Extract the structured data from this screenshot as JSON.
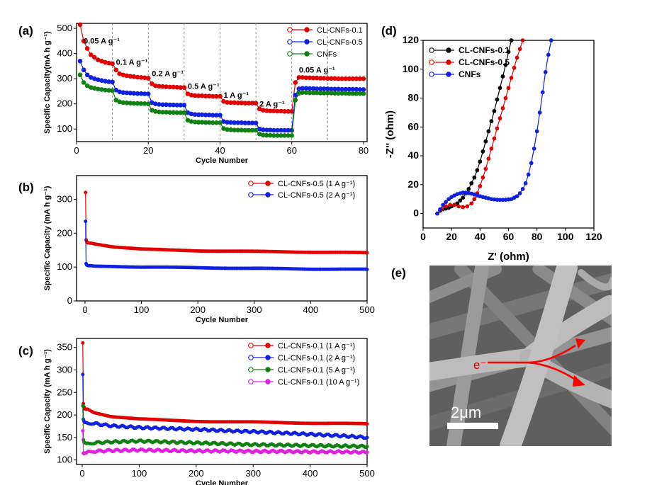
{
  "figure": {
    "panel_labels": [
      "(a)",
      "(b)",
      "(c)",
      "(d)",
      "(e)"
    ]
  },
  "chart_data": [
    {
      "id": "a",
      "type": "scatter",
      "xlabel": "Cycle Number",
      "ylabel": "Specific Capacity(mA h g⁻¹)",
      "xlim": [
        0,
        81
      ],
      "ylim": [
        50,
        520
      ],
      "xticks": [
        0,
        20,
        40,
        60,
        80
      ],
      "yticks": [
        100,
        200,
        300,
        400,
        500
      ],
      "dashed_lines_x": [
        10,
        20,
        30,
        40,
        50,
        60,
        70
      ],
      "legend_position": "top-right",
      "annotations": [
        {
          "text": "0.05 A g⁻¹",
          "x": 2,
          "y": 440
        },
        {
          "text": "0.1 A g⁻¹",
          "x": 11,
          "y": 355
        },
        {
          "text": "0.2 A g⁻¹",
          "x": 21,
          "y": 310
        },
        {
          "text": "0.5 A g⁻¹",
          "x": 31,
          "y": 260
        },
        {
          "text": "1 A g⁻¹",
          "x": 41,
          "y": 225
        },
        {
          "text": "2 A g⁻¹",
          "x": 51,
          "y": 190
        },
        {
          "text": "0.05 A g⁻¹",
          "x": 62,
          "y": 325
        }
      ],
      "series": [
        {
          "name": "CL-CNFs-0.1",
          "color": "#e00000",
          "values": [
            515,
            450,
            420,
            395,
            385,
            375,
            370,
            365,
            362,
            360,
            335,
            320,
            315,
            312,
            310,
            308,
            306,
            305,
            304,
            302,
            280,
            272,
            270,
            269,
            268,
            267,
            267,
            266,
            265,
            265,
            240,
            235,
            233,
            232,
            232,
            231,
            231,
            230,
            230,
            230,
            210,
            206,
            205,
            205,
            204,
            204,
            203,
            203,
            203,
            203,
            180,
            175,
            173,
            172,
            172,
            171,
            171,
            170,
            170,
            170,
            285,
            305,
            305,
            304,
            304,
            303,
            303,
            302,
            302,
            301,
            301,
            301,
            300,
            300,
            300,
            300,
            300,
            300,
            300,
            300
          ]
        },
        {
          "name": "CL-CNFs-0.5",
          "color": "#1020e0",
          "values": [
            370,
            335,
            315,
            305,
            300,
            296,
            293,
            290,
            288,
            287,
            255,
            248,
            245,
            244,
            243,
            242,
            241,
            241,
            240,
            240,
            205,
            200,
            198,
            197,
            197,
            196,
            196,
            195,
            195,
            195,
            165,
            160,
            158,
            157,
            157,
            156,
            156,
            155,
            155,
            155,
            130,
            127,
            126,
            125,
            125,
            125,
            124,
            124,
            124,
            124,
            100,
            97,
            96,
            96,
            95,
            95,
            95,
            95,
            95,
            95,
            235,
            260,
            262,
            262,
            261,
            261,
            260,
            260,
            260,
            260,
            259,
            259,
            259,
            258,
            258,
            258,
            258,
            258,
            257,
            257
          ]
        },
        {
          "name": "CNFs",
          "color": "#108010",
          "values": [
            315,
            285,
            272,
            265,
            262,
            259,
            257,
            255,
            254,
            253,
            215,
            208,
            205,
            204,
            203,
            202,
            202,
            201,
            201,
            200,
            175,
            170,
            168,
            167,
            167,
            166,
            166,
            165,
            165,
            165,
            135,
            130,
            128,
            127,
            127,
            126,
            126,
            125,
            125,
            125,
            102,
            98,
            97,
            96,
            96,
            96,
            95,
            95,
            95,
            95,
            80,
            76,
            75,
            75,
            74,
            74,
            74,
            74,
            74,
            74,
            215,
            242,
            245,
            245,
            244,
            244,
            244,
            243,
            243,
            243,
            243,
            242,
            242,
            242,
            242,
            241,
            241,
            241,
            241,
            241
          ]
        }
      ]
    },
    {
      "id": "b",
      "type": "scatter",
      "xlabel": "Cycle Number",
      "ylabel": "Specific Capacity (mA h g⁻¹)",
      "xlim": [
        -15,
        500
      ],
      "ylim": [
        0,
        370
      ],
      "xticks": [
        0,
        100,
        200,
        300,
        400,
        500
      ],
      "yticks": [
        0,
        100,
        200,
        300
      ],
      "legend_position": "top-right",
      "series": [
        {
          "name": "CL-CNFs-0.5 (1 A g⁻¹)",
          "color": "#e00000",
          "x": [
            1,
            2,
            3,
            5,
            10,
            20,
            50,
            100,
            150,
            200,
            250,
            300,
            350,
            400,
            450,
            500
          ],
          "values": [
            320,
            180,
            175,
            172,
            170,
            168,
            160,
            153,
            150,
            148,
            147,
            146,
            145,
            144,
            143,
            142
          ]
        },
        {
          "name": "CL-CNFs-0.5 (2 A g⁻¹)",
          "color": "#1020e0",
          "x": [
            1,
            2,
            3,
            5,
            10,
            20,
            50,
            100,
            150,
            200,
            250,
            300,
            350,
            400,
            450,
            500
          ],
          "values": [
            235,
            110,
            106,
            105,
            104,
            103,
            102,
            100,
            99,
            98,
            97,
            96,
            95,
            94,
            94,
            93
          ]
        }
      ]
    },
    {
      "id": "c",
      "type": "scatter",
      "xlabel": "Cycle Number",
      "ylabel": "Specific Capacity (mA h g⁻¹)",
      "xlim": [
        -10,
        500
      ],
      "ylim": [
        90,
        370
      ],
      "xticks": [
        0,
        100,
        200,
        300,
        400,
        500
      ],
      "yticks": [
        100,
        150,
        200,
        250,
        300,
        350
      ],
      "legend_position": "top-right",
      "series": [
        {
          "name": "CL-CNFs-0.1 (1 A g⁻¹)",
          "color": "#e00000",
          "x": [
            1,
            2,
            3,
            5,
            10,
            20,
            50,
            100,
            150,
            200,
            250,
            300,
            350,
            400,
            450,
            500
          ],
          "values": [
            360,
            225,
            218,
            214,
            212,
            206,
            197,
            191,
            188,
            186,
            185,
            184,
            183,
            182,
            181,
            180
          ]
        },
        {
          "name": "CL-CNFs-0.1 (2 A g⁻¹)",
          "color": "#1020e0",
          "x": [
            1,
            2,
            3,
            5,
            10,
            20,
            50,
            100,
            150,
            200,
            250,
            300,
            350,
            400,
            450,
            500
          ],
          "values": [
            290,
            190,
            186,
            184,
            183,
            181,
            176,
            172,
            170,
            168,
            165,
            163,
            160,
            157,
            154,
            150
          ]
        },
        {
          "name": "CL-CNFs-0.1 (5 A g⁻¹)",
          "color": "#108010",
          "x": [
            1,
            2,
            3,
            5,
            10,
            20,
            50,
            100,
            150,
            200,
            250,
            300,
            350,
            400,
            450,
            500
          ],
          "values": [
            220,
            145,
            140,
            138,
            137,
            138,
            140,
            142,
            140,
            138,
            136,
            134,
            133,
            132,
            131,
            130
          ]
        },
        {
          "name": "CL-CNFs-0.1 (10 A g⁻¹)",
          "color": "#e020e0",
          "x": [
            1,
            2,
            3,
            5,
            10,
            20,
            50,
            100,
            150,
            200,
            250,
            300,
            350,
            400,
            450,
            500
          ],
          "values": [
            165,
            115,
            114,
            115,
            117,
            119,
            121,
            122,
            121,
            120,
            120,
            119,
            119,
            118,
            118,
            117
          ]
        }
      ]
    },
    {
      "id": "d",
      "type": "scatter",
      "xlabel": "Z' (ohm)",
      "ylabel": "-Z'' (ohm)",
      "xlim": [
        0,
        120
      ],
      "ylim": [
        -10,
        120
      ],
      "xticks": [
        0,
        20,
        40,
        60,
        80,
        100,
        120
      ],
      "yticks": [
        0,
        20,
        40,
        60,
        80,
        100,
        120
      ],
      "legend_position": "top-left",
      "series": [
        {
          "name": "CL-CNFs-0.1",
          "color": "#000000",
          "x": [
            10,
            12,
            14,
            16,
            18,
            20,
            22,
            24,
            26,
            28,
            30,
            32,
            34,
            36,
            38,
            40,
            42,
            44,
            46,
            48,
            50,
            52,
            54,
            56,
            58,
            60,
            62
          ],
          "y": [
            0,
            2,
            3,
            3.5,
            4,
            5,
            6,
            7,
            9,
            11,
            14,
            17,
            21,
            25,
            30,
            36,
            43,
            50,
            57,
            64,
            71,
            79,
            87,
            95,
            103,
            112,
            120
          ]
        },
        {
          "name": "CL-CNFs-0.5",
          "color": "#e00000",
          "x": [
            10,
            13,
            16,
            19,
            22,
            25,
            28,
            31,
            34,
            36,
            38,
            40,
            42,
            44,
            46,
            48,
            50,
            52,
            54,
            56,
            58,
            60,
            62,
            64,
            66,
            68,
            70
          ],
          "y": [
            0,
            3,
            5,
            6,
            6,
            5,
            4.5,
            5,
            7,
            10,
            14,
            19,
            25,
            31,
            38,
            45,
            52,
            59,
            66,
            73,
            80,
            87,
            94,
            101,
            108,
            114,
            120
          ]
        },
        {
          "name": "CNFs",
          "color": "#1020e0",
          "x": [
            10,
            12,
            14,
            16,
            18,
            20,
            22,
            24,
            26,
            28,
            30,
            32,
            34,
            36,
            38,
            40,
            42,
            44,
            46,
            48,
            50,
            52,
            54,
            56,
            58,
            60,
            62,
            64,
            66,
            68,
            70,
            72,
            74,
            76,
            78,
            80,
            82,
            84,
            86,
            88,
            90
          ],
          "y": [
            0,
            3,
            6,
            8,
            10,
            11.5,
            12.5,
            13.5,
            14,
            14.5,
            14.5,
            14.2,
            13.8,
            13.2,
            12.5,
            12,
            11.5,
            11,
            10.5,
            10,
            9.8,
            9.6,
            9.5,
            9.5,
            9.6,
            9.8,
            10,
            11,
            12,
            14,
            17,
            21,
            27,
            35,
            45,
            57,
            70,
            84,
            98,
            110,
            120
          ]
        }
      ]
    }
  ],
  "sem_image": {
    "description_icon": "sem-nanofiber-image",
    "electron_label": "e⁻",
    "scale_bar_label": "2μm"
  }
}
